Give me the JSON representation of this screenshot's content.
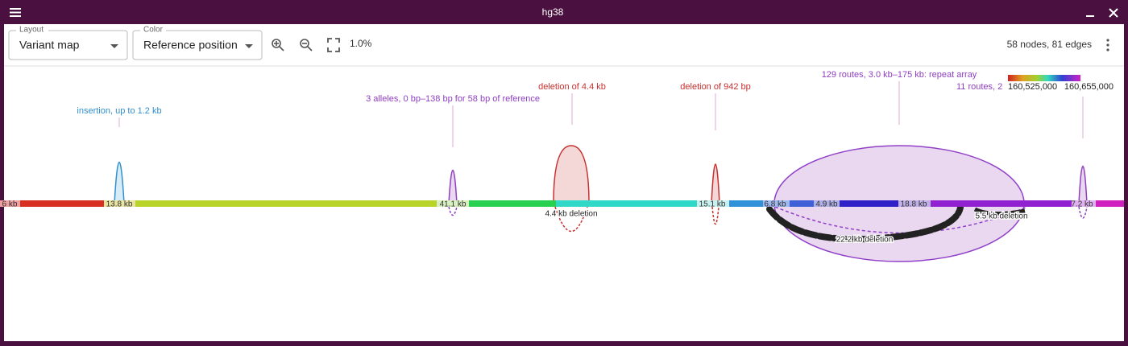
{
  "window": {
    "title": "hg38"
  },
  "toolbar": {
    "layout": {
      "label": "Layout",
      "value": "Variant map"
    },
    "color": {
      "label": "Color",
      "value": "Reference position"
    },
    "zoom": "1.0%",
    "stats": "58 nodes, 81 edges"
  },
  "legend": {
    "min": "160,525,000",
    "max": "160,655,000"
  },
  "annotations": [
    "insertion, up to 1.2 kb",
    "3 alleles, 0 bp–138 bp for 58 bp of reference",
    "deletion of 4.4 kb",
    "deletion of 942 bp",
    "129 routes, 3.0 kb–175 kb: repeat array",
    "11 routes, 2"
  ],
  "segments": [
    "6 kb",
    "13.8 kb",
    "41.1 kb",
    "15.1 kb",
    "6.8 kb",
    "4.9 kb",
    "18.8 kb",
    "7.2 kb"
  ],
  "edges": [
    "4.4 kb deletion",
    "22.2 kb deletion",
    "5.5 kb deletion"
  ]
}
